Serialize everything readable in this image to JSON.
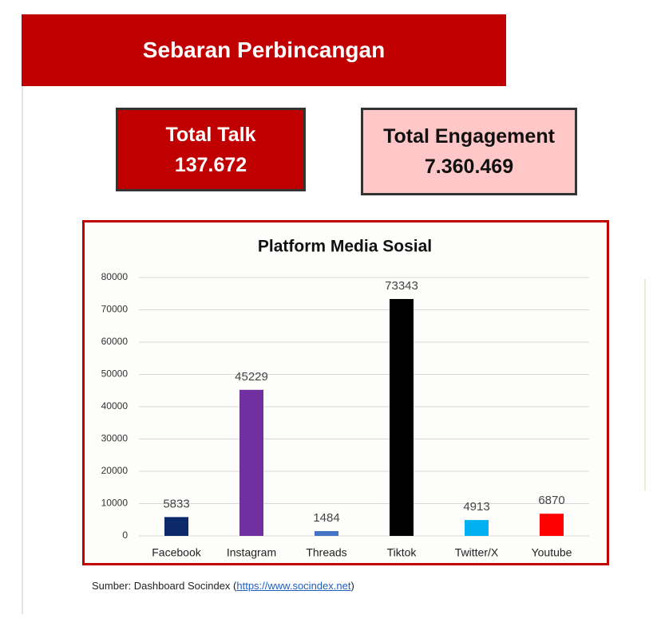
{
  "header": {
    "title": "Sebaran Perbincangan"
  },
  "cards": [
    {
      "label": "Total Talk",
      "value": "137.672"
    },
    {
      "label": "Total Engagement",
      "value": "7.360.469"
    }
  ],
  "chart_data": {
    "type": "bar",
    "title": "Platform Media Sosial",
    "categories": [
      "Facebook",
      "Instagram",
      "Threads",
      "Tiktok",
      "Twitter/X",
      "Youtube"
    ],
    "values": [
      5833,
      45229,
      1484,
      73343,
      4913,
      6870
    ],
    "colors": [
      "#0c2a6a",
      "#7030a0",
      "#4472c4",
      "#000000",
      "#00b0f0",
      "#ff0000"
    ],
    "ylim": [
      0,
      80000
    ],
    "yticks": [
      0,
      10000,
      20000,
      30000,
      40000,
      50000,
      60000,
      70000,
      80000
    ],
    "grid": true
  },
  "source": {
    "text_before": "Sumber: Dashboard Socindex (",
    "link": "https://www.socindex.net",
    "text_after": ")"
  }
}
